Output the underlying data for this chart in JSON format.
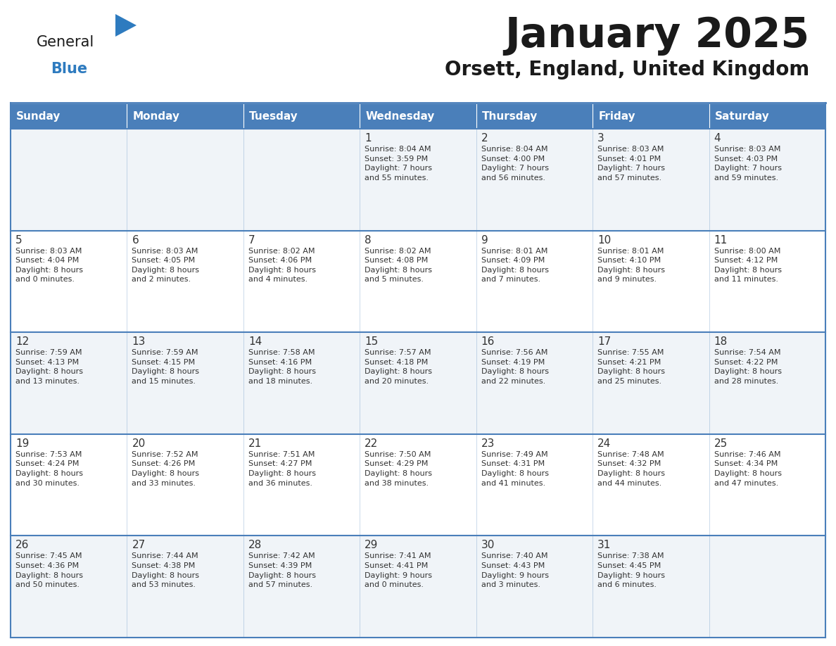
{
  "title": "January 2025",
  "subtitle": "Orsett, England, United Kingdom",
  "days_of_week": [
    "Sunday",
    "Monday",
    "Tuesday",
    "Wednesday",
    "Thursday",
    "Friday",
    "Saturday"
  ],
  "header_bg": "#4a7fba",
  "header_text": "#ffffff",
  "border_color": "#4a7fba",
  "day_num_color": "#333333",
  "text_color": "#333333",
  "title_color": "#1a1a1a",
  "subtitle_color": "#1a1a1a",
  "logo_general_color": "#1a1a1a",
  "logo_blue_color": "#2e7bbf",
  "cell_bg_odd": "#f0f4f8",
  "cell_bg_even": "#ffffff",
  "calendar": [
    [
      {
        "day": null,
        "text": ""
      },
      {
        "day": null,
        "text": ""
      },
      {
        "day": null,
        "text": ""
      },
      {
        "day": 1,
        "text": "Sunrise: 8:04 AM\nSunset: 3:59 PM\nDaylight: 7 hours\nand 55 minutes."
      },
      {
        "day": 2,
        "text": "Sunrise: 8:04 AM\nSunset: 4:00 PM\nDaylight: 7 hours\nand 56 minutes."
      },
      {
        "day": 3,
        "text": "Sunrise: 8:03 AM\nSunset: 4:01 PM\nDaylight: 7 hours\nand 57 minutes."
      },
      {
        "day": 4,
        "text": "Sunrise: 8:03 AM\nSunset: 4:03 PM\nDaylight: 7 hours\nand 59 minutes."
      }
    ],
    [
      {
        "day": 5,
        "text": "Sunrise: 8:03 AM\nSunset: 4:04 PM\nDaylight: 8 hours\nand 0 minutes."
      },
      {
        "day": 6,
        "text": "Sunrise: 8:03 AM\nSunset: 4:05 PM\nDaylight: 8 hours\nand 2 minutes."
      },
      {
        "day": 7,
        "text": "Sunrise: 8:02 AM\nSunset: 4:06 PM\nDaylight: 8 hours\nand 4 minutes."
      },
      {
        "day": 8,
        "text": "Sunrise: 8:02 AM\nSunset: 4:08 PM\nDaylight: 8 hours\nand 5 minutes."
      },
      {
        "day": 9,
        "text": "Sunrise: 8:01 AM\nSunset: 4:09 PM\nDaylight: 8 hours\nand 7 minutes."
      },
      {
        "day": 10,
        "text": "Sunrise: 8:01 AM\nSunset: 4:10 PM\nDaylight: 8 hours\nand 9 minutes."
      },
      {
        "day": 11,
        "text": "Sunrise: 8:00 AM\nSunset: 4:12 PM\nDaylight: 8 hours\nand 11 minutes."
      }
    ],
    [
      {
        "day": 12,
        "text": "Sunrise: 7:59 AM\nSunset: 4:13 PM\nDaylight: 8 hours\nand 13 minutes."
      },
      {
        "day": 13,
        "text": "Sunrise: 7:59 AM\nSunset: 4:15 PM\nDaylight: 8 hours\nand 15 minutes."
      },
      {
        "day": 14,
        "text": "Sunrise: 7:58 AM\nSunset: 4:16 PM\nDaylight: 8 hours\nand 18 minutes."
      },
      {
        "day": 15,
        "text": "Sunrise: 7:57 AM\nSunset: 4:18 PM\nDaylight: 8 hours\nand 20 minutes."
      },
      {
        "day": 16,
        "text": "Sunrise: 7:56 AM\nSunset: 4:19 PM\nDaylight: 8 hours\nand 22 minutes."
      },
      {
        "day": 17,
        "text": "Sunrise: 7:55 AM\nSunset: 4:21 PM\nDaylight: 8 hours\nand 25 minutes."
      },
      {
        "day": 18,
        "text": "Sunrise: 7:54 AM\nSunset: 4:22 PM\nDaylight: 8 hours\nand 28 minutes."
      }
    ],
    [
      {
        "day": 19,
        "text": "Sunrise: 7:53 AM\nSunset: 4:24 PM\nDaylight: 8 hours\nand 30 minutes."
      },
      {
        "day": 20,
        "text": "Sunrise: 7:52 AM\nSunset: 4:26 PM\nDaylight: 8 hours\nand 33 minutes."
      },
      {
        "day": 21,
        "text": "Sunrise: 7:51 AM\nSunset: 4:27 PM\nDaylight: 8 hours\nand 36 minutes."
      },
      {
        "day": 22,
        "text": "Sunrise: 7:50 AM\nSunset: 4:29 PM\nDaylight: 8 hours\nand 38 minutes."
      },
      {
        "day": 23,
        "text": "Sunrise: 7:49 AM\nSunset: 4:31 PM\nDaylight: 8 hours\nand 41 minutes."
      },
      {
        "day": 24,
        "text": "Sunrise: 7:48 AM\nSunset: 4:32 PM\nDaylight: 8 hours\nand 44 minutes."
      },
      {
        "day": 25,
        "text": "Sunrise: 7:46 AM\nSunset: 4:34 PM\nDaylight: 8 hours\nand 47 minutes."
      }
    ],
    [
      {
        "day": 26,
        "text": "Sunrise: 7:45 AM\nSunset: 4:36 PM\nDaylight: 8 hours\nand 50 minutes."
      },
      {
        "day": 27,
        "text": "Sunrise: 7:44 AM\nSunset: 4:38 PM\nDaylight: 8 hours\nand 53 minutes."
      },
      {
        "day": 28,
        "text": "Sunrise: 7:42 AM\nSunset: 4:39 PM\nDaylight: 8 hours\nand 57 minutes."
      },
      {
        "day": 29,
        "text": "Sunrise: 7:41 AM\nSunset: 4:41 PM\nDaylight: 9 hours\nand 0 minutes."
      },
      {
        "day": 30,
        "text": "Sunrise: 7:40 AM\nSunset: 4:43 PM\nDaylight: 9 hours\nand 3 minutes."
      },
      {
        "day": 31,
        "text": "Sunrise: 7:38 AM\nSunset: 4:45 PM\nDaylight: 9 hours\nand 6 minutes."
      },
      {
        "day": null,
        "text": ""
      }
    ]
  ]
}
